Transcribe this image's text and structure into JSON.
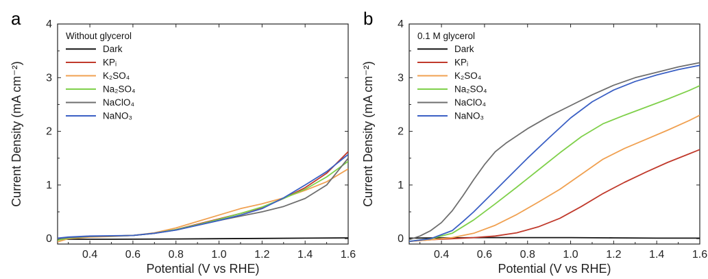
{
  "chart_data": [
    {
      "panel": "a",
      "type": "line",
      "xlabel": "Potential (V vs RHE)",
      "ylabel": "Current Density (mA cm⁻²)",
      "xlim": [
        0.25,
        1.6
      ],
      "ylim": [
        -0.1,
        4
      ],
      "xticks": [
        "0.4",
        "0.6",
        "0.8",
        "1.0",
        "1.2",
        "1.4",
        "1.6"
      ],
      "yticks": [
        "0",
        "1",
        "2",
        "3",
        "4"
      ],
      "legend_title": "Without glycerol",
      "legend_position": "top-left",
      "grid": false,
      "series": [
        {
          "name": "Dark",
          "color": "#111111",
          "x": [
            0.25,
            0.5,
            0.8,
            1.0,
            1.2,
            1.4,
            1.6
          ],
          "y": [
            -0.01,
            -0.01,
            -0.005,
            0.0,
            0.005,
            0.01,
            0.015
          ]
        },
        {
          "name": "KPi",
          "color": "#c0392b",
          "x": [
            0.25,
            0.3,
            0.4,
            0.5,
            0.6,
            0.7,
            0.8,
            0.9,
            1.0,
            1.1,
            1.2,
            1.3,
            1.4,
            1.5,
            1.6
          ],
          "y": [
            0.0,
            0.02,
            0.04,
            0.05,
            0.06,
            0.1,
            0.17,
            0.27,
            0.37,
            0.47,
            0.58,
            0.75,
            0.95,
            1.22,
            1.62
          ]
        },
        {
          "name": "K2SO4",
          "color": "#f0a050",
          "x": [
            0.25,
            0.3,
            0.4,
            0.5,
            0.6,
            0.7,
            0.8,
            0.9,
            1.0,
            1.1,
            1.2,
            1.3,
            1.4,
            1.5,
            1.6
          ],
          "y": [
            -0.06,
            0.0,
            0.03,
            0.04,
            0.06,
            0.11,
            0.2,
            0.32,
            0.44,
            0.56,
            0.65,
            0.76,
            0.9,
            1.06,
            1.3
          ]
        },
        {
          "name": "Na2SO4",
          "color": "#7fd04a",
          "x": [
            0.25,
            0.3,
            0.4,
            0.5,
            0.6,
            0.7,
            0.8,
            0.9,
            1.0,
            1.1,
            1.2,
            1.3,
            1.4,
            1.5,
            1.6
          ],
          "y": [
            -0.03,
            0.01,
            0.04,
            0.05,
            0.06,
            0.1,
            0.17,
            0.26,
            0.36,
            0.47,
            0.59,
            0.75,
            0.92,
            1.15,
            1.44
          ]
        },
        {
          "name": "NaClO4",
          "color": "#6e6e6e",
          "x": [
            0.25,
            0.3,
            0.4,
            0.5,
            0.6,
            0.7,
            0.8,
            0.9,
            1.0,
            1.1,
            1.2,
            1.3,
            1.4,
            1.5,
            1.6
          ],
          "y": [
            0.0,
            0.02,
            0.04,
            0.05,
            0.06,
            0.1,
            0.16,
            0.25,
            0.34,
            0.42,
            0.5,
            0.6,
            0.75,
            1.0,
            1.5
          ]
        },
        {
          "name": "NaNO3",
          "color": "#3a5fc4",
          "x": [
            0.25,
            0.3,
            0.4,
            0.5,
            0.6,
            0.7,
            0.8,
            0.9,
            1.0,
            1.1,
            1.2,
            1.3,
            1.4,
            1.5,
            1.6
          ],
          "y": [
            0.01,
            0.03,
            0.05,
            0.055,
            0.06,
            0.1,
            0.16,
            0.25,
            0.34,
            0.44,
            0.56,
            0.76,
            1.0,
            1.25,
            1.57
          ]
        }
      ]
    },
    {
      "panel": "b",
      "type": "line",
      "xlabel": "Potential (V vs RHE)",
      "ylabel": "Current Density (mA cm⁻²)",
      "xlim": [
        0.25,
        1.6
      ],
      "ylim": [
        -0.1,
        4
      ],
      "xticks": [
        "0.4",
        "0.6",
        "0.8",
        "1.0",
        "1.2",
        "1.4",
        "1.6"
      ],
      "yticks": [
        "0",
        "1",
        "2",
        "3",
        "4"
      ],
      "legend_title": "0.1 M glycerol",
      "legend_position": "top-left",
      "grid": false,
      "series": [
        {
          "name": "Dark",
          "color": "#111111",
          "x": [
            0.25,
            0.4,
            0.6,
            0.8,
            1.0,
            1.2,
            1.4,
            1.6
          ],
          "y": [
            0.01,
            0.015,
            0.02,
            0.02,
            0.02,
            0.015,
            0.01,
            0.01
          ]
        },
        {
          "name": "KPi",
          "color": "#c0392b",
          "x": [
            0.25,
            0.35,
            0.45,
            0.55,
            0.65,
            0.75,
            0.85,
            0.95,
            1.05,
            1.15,
            1.25,
            1.35,
            1.45,
            1.55,
            1.6
          ],
          "y": [
            -0.05,
            -0.02,
            0.0,
            0.02,
            0.05,
            0.11,
            0.22,
            0.38,
            0.6,
            0.84,
            1.05,
            1.24,
            1.42,
            1.58,
            1.66
          ]
        },
        {
          "name": "K2SO4",
          "color": "#f0a050",
          "x": [
            0.25,
            0.35,
            0.45,
            0.55,
            0.65,
            0.75,
            0.85,
            0.95,
            1.05,
            1.15,
            1.25,
            1.35,
            1.45,
            1.55,
            1.6
          ],
          "y": [
            -0.05,
            -0.02,
            0.02,
            0.1,
            0.25,
            0.45,
            0.68,
            0.92,
            1.2,
            1.48,
            1.68,
            1.85,
            2.02,
            2.2,
            2.3
          ]
        },
        {
          "name": "Na2SO4",
          "color": "#7fd04a",
          "x": [
            0.25,
            0.35,
            0.45,
            0.55,
            0.65,
            0.75,
            0.85,
            0.95,
            1.05,
            1.15,
            1.25,
            1.35,
            1.45,
            1.55,
            1.6
          ],
          "y": [
            -0.05,
            0.0,
            0.1,
            0.35,
            0.65,
            0.96,
            1.28,
            1.6,
            1.9,
            2.14,
            2.3,
            2.45,
            2.6,
            2.76,
            2.85
          ]
        },
        {
          "name": "NaClO4",
          "color": "#6e6e6e",
          "x": [
            0.25,
            0.3,
            0.35,
            0.4,
            0.45,
            0.5,
            0.55,
            0.6,
            0.65,
            0.7,
            0.8,
            0.9,
            1.0,
            1.1,
            1.2,
            1.3,
            1.4,
            1.5,
            1.6
          ],
          "y": [
            -0.02,
            0.05,
            0.15,
            0.3,
            0.52,
            0.8,
            1.1,
            1.38,
            1.62,
            1.78,
            2.05,
            2.28,
            2.48,
            2.68,
            2.86,
            3.0,
            3.1,
            3.2,
            3.28
          ]
        },
        {
          "name": "NaNO3",
          "color": "#3a5fc4",
          "x": [
            0.25,
            0.35,
            0.45,
            0.5,
            0.55,
            0.6,
            0.65,
            0.7,
            0.8,
            0.9,
            1.0,
            1.1,
            1.2,
            1.3,
            1.4,
            1.5,
            1.6
          ],
          "y": [
            -0.05,
            0.0,
            0.15,
            0.32,
            0.5,
            0.7,
            0.9,
            1.1,
            1.5,
            1.88,
            2.25,
            2.55,
            2.77,
            2.93,
            3.05,
            3.15,
            3.23
          ]
        }
      ]
    }
  ]
}
